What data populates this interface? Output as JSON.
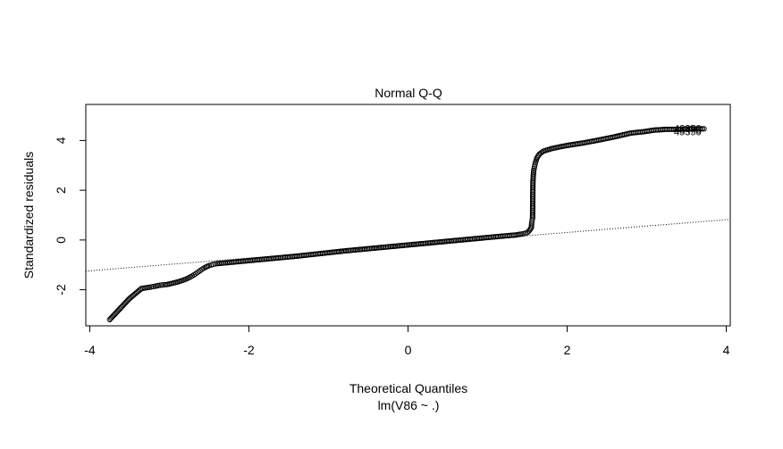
{
  "chart_data": {
    "type": "scatter",
    "title": "Normal Q-Q",
    "xlabel": "Theoretical Quantiles",
    "xlabel_sub": "lm(V86 ~ .)",
    "ylabel": "Standardized residuals",
    "xlim": [
      -4.05,
      4.05
    ],
    "ylim": [
      -3.45,
      5.45
    ],
    "x_ticks": [
      -4,
      -2,
      0,
      2,
      4
    ],
    "y_ticks": [
      -2,
      0,
      2,
      4
    ],
    "grid": false,
    "marker": "open-circle",
    "reference_line": {
      "style": "dotted",
      "x": [
        -4.05,
        4.05
      ],
      "y": [
        -1.25,
        0.83
      ]
    },
    "point_labels": [
      {
        "text": "43350",
        "x": 3.72,
        "y": 4.5
      },
      {
        "text": "45470",
        "x": 3.72,
        "y": 4.42
      },
      {
        "text": "45350",
        "x": 3.72,
        "y": 4.36
      }
    ],
    "points": [
      [
        -3.75,
        -3.2
      ],
      [
        -3.5,
        -2.35
      ],
      [
        -3.35,
        -1.95
      ],
      [
        -3.25,
        -1.9
      ],
      [
        -3.18,
        -1.86
      ],
      [
        -3.12,
        -1.82
      ],
      [
        -3.07,
        -1.8
      ],
      [
        -3.03,
        -1.79
      ],
      [
        -2.99,
        -1.76
      ],
      [
        -2.95,
        -1.73
      ],
      [
        -2.91,
        -1.7
      ],
      [
        -2.87,
        -1.66
      ],
      [
        -2.83,
        -1.62
      ],
      [
        -2.79,
        -1.57
      ],
      [
        -2.75,
        -1.51
      ],
      [
        -2.71,
        -1.44
      ],
      [
        -2.67,
        -1.36
      ],
      [
        -2.63,
        -1.27
      ],
      [
        -2.59,
        -1.18
      ],
      [
        -2.55,
        -1.1
      ],
      [
        -2.5,
        -1.03
      ],
      [
        -2.45,
        -0.98
      ],
      [
        -2.4,
        -0.95
      ],
      [
        -2.3,
        -0.92
      ],
      [
        -2.2,
        -0.89
      ],
      [
        -2.0,
        -0.83
      ],
      [
        -1.8,
        -0.77
      ],
      [
        -1.6,
        -0.71
      ],
      [
        -1.4,
        -0.65
      ],
      [
        -1.2,
        -0.58
      ],
      [
        -1.0,
        -0.51
      ],
      [
        -0.8,
        -0.44
      ],
      [
        -0.6,
        -0.38
      ],
      [
        -0.4,
        -0.32
      ],
      [
        -0.2,
        -0.26
      ],
      [
        0.0,
        -0.2
      ],
      [
        0.2,
        -0.14
      ],
      [
        0.4,
        -0.08
      ],
      [
        0.6,
        -0.02
      ],
      [
        0.8,
        0.04
      ],
      [
        1.0,
        0.1
      ],
      [
        1.2,
        0.16
      ],
      [
        1.35,
        0.2
      ],
      [
        1.45,
        0.25
      ],
      [
        1.5,
        0.3
      ],
      [
        1.53,
        0.4
      ],
      [
        1.55,
        0.5
      ],
      [
        1.555,
        0.7
      ],
      [
        1.56,
        0.8
      ],
      [
        1.565,
        0.88
      ],
      [
        1.57,
        2.35
      ],
      [
        1.575,
        2.6
      ],
      [
        1.58,
        2.8
      ],
      [
        1.59,
        2.95
      ],
      [
        1.6,
        3.1
      ],
      [
        1.62,
        3.3
      ],
      [
        1.65,
        3.45
      ],
      [
        1.7,
        3.57
      ],
      [
        1.8,
        3.67
      ],
      [
        1.9,
        3.74
      ],
      [
        2.0,
        3.8
      ],
      [
        2.2,
        3.9
      ],
      [
        2.4,
        4.02
      ],
      [
        2.6,
        4.15
      ],
      [
        2.8,
        4.3
      ],
      [
        2.95,
        4.35
      ],
      [
        3.1,
        4.42
      ],
      [
        3.25,
        4.45
      ],
      [
        3.4,
        4.45
      ],
      [
        3.55,
        4.47
      ],
      [
        3.72,
        4.47
      ]
    ]
  }
}
